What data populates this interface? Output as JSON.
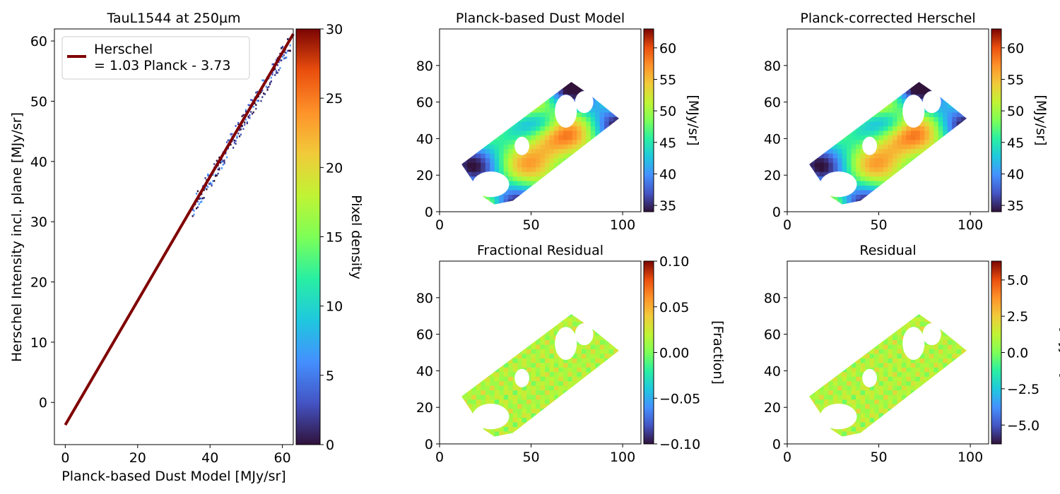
{
  "colors": {
    "fit_line": "#800000",
    "colormap": "turbo",
    "frame": "#000000",
    "background": "#ffffff"
  },
  "chart_data": [
    {
      "type": "heatmap",
      "title": "TauL1544 at 250µm",
      "xlabel": "Planck-based Dust Model [MJy/sr]",
      "ylabel": "Herschel Intensity incl. plane [MJy/sr]",
      "xlim": [
        -3,
        63
      ],
      "ylim": [
        -7,
        62
      ],
      "xticks": [
        0,
        20,
        40,
        60
      ],
      "yticks": [
        0,
        10,
        20,
        30,
        40,
        50,
        60
      ],
      "fit_line": {
        "slope": 1.03,
        "intercept": -3.73,
        "x_range": [
          0,
          63
        ]
      },
      "legend": {
        "placement": "upper-left",
        "line1": "Herschel",
        "line2": "= 1.03 Planck - 3.73"
      },
      "points_x_range": [
        35,
        62
      ],
      "colorbar": {
        "label": "Pixel density",
        "range": [
          0,
          30
        ],
        "ticks": [
          0,
          5,
          10,
          15,
          20,
          25,
          30
        ]
      }
    },
    {
      "type": "heatmap",
      "title": "Planck-based Dust Model",
      "xlim": [
        0,
        110
      ],
      "ylim": [
        0,
        100
      ],
      "xticks": [
        0,
        50,
        100
      ],
      "yticks": [
        0,
        20,
        40,
        60,
        80
      ],
      "colorbar": {
        "label": "[MJy/sr]",
        "range": [
          34,
          63
        ],
        "ticks": [
          35,
          40,
          45,
          50,
          55,
          60
        ]
      }
    },
    {
      "type": "heatmap",
      "title": "Planck-corrected Herschel",
      "xlim": [
        0,
        110
      ],
      "ylim": [
        0,
        100
      ],
      "xticks": [
        0,
        50,
        100
      ],
      "yticks": [
        0,
        20,
        40,
        60,
        80
      ],
      "colorbar": {
        "label": "[MJy/sr]",
        "range": [
          34,
          63
        ],
        "ticks": [
          35,
          40,
          45,
          50,
          55,
          60
        ]
      }
    },
    {
      "type": "heatmap",
      "title": "Fractional Residual",
      "xlim": [
        0,
        110
      ],
      "ylim": [
        0,
        100
      ],
      "xticks": [
        0,
        50,
        100
      ],
      "yticks": [
        0,
        20,
        40,
        60,
        80
      ],
      "colorbar": {
        "label": "[Fraction]",
        "range": [
          -0.1,
          0.1
        ],
        "ticks": [
          0.1,
          0.05,
          0.0,
          -0.05,
          -0.1
        ],
        "tick_labels": [
          "0.10",
          "0.05",
          "0.00",
          "−0.05",
          "−0.10"
        ]
      }
    },
    {
      "type": "heatmap",
      "title": "Residual",
      "xlim": [
        0,
        110
      ],
      "ylim": [
        0,
        100
      ],
      "xticks": [
        0,
        50,
        100
      ],
      "yticks": [
        0,
        20,
        40,
        60,
        80
      ],
      "colorbar": {
        "label": "[MJy/sr]",
        "range": [
          -6.3,
          6.3
        ],
        "ticks": [
          5.0,
          2.5,
          0.0,
          -2.5,
          -5.0
        ],
        "tick_labels": [
          "5.0",
          "2.5",
          "0.0",
          "−2.5",
          "−5.0"
        ]
      }
    }
  ]
}
